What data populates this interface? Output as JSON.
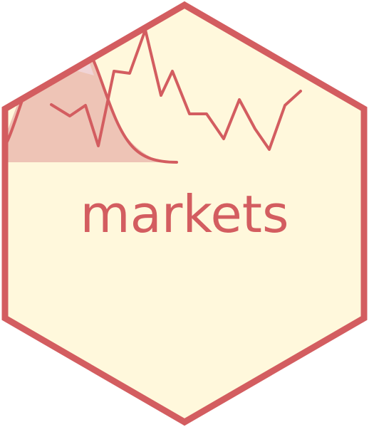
{
  "logo": {
    "wordmark": "markets",
    "shape": "hexagon",
    "colors": {
      "fill": "#FFF8DC",
      "border": "#D35D60",
      "text": "#D35D60",
      "curve_fill_light": "#F1D4D6",
      "curve_fill_dark": "#EEC4B6",
      "line": "#D35D60"
    }
  }
}
